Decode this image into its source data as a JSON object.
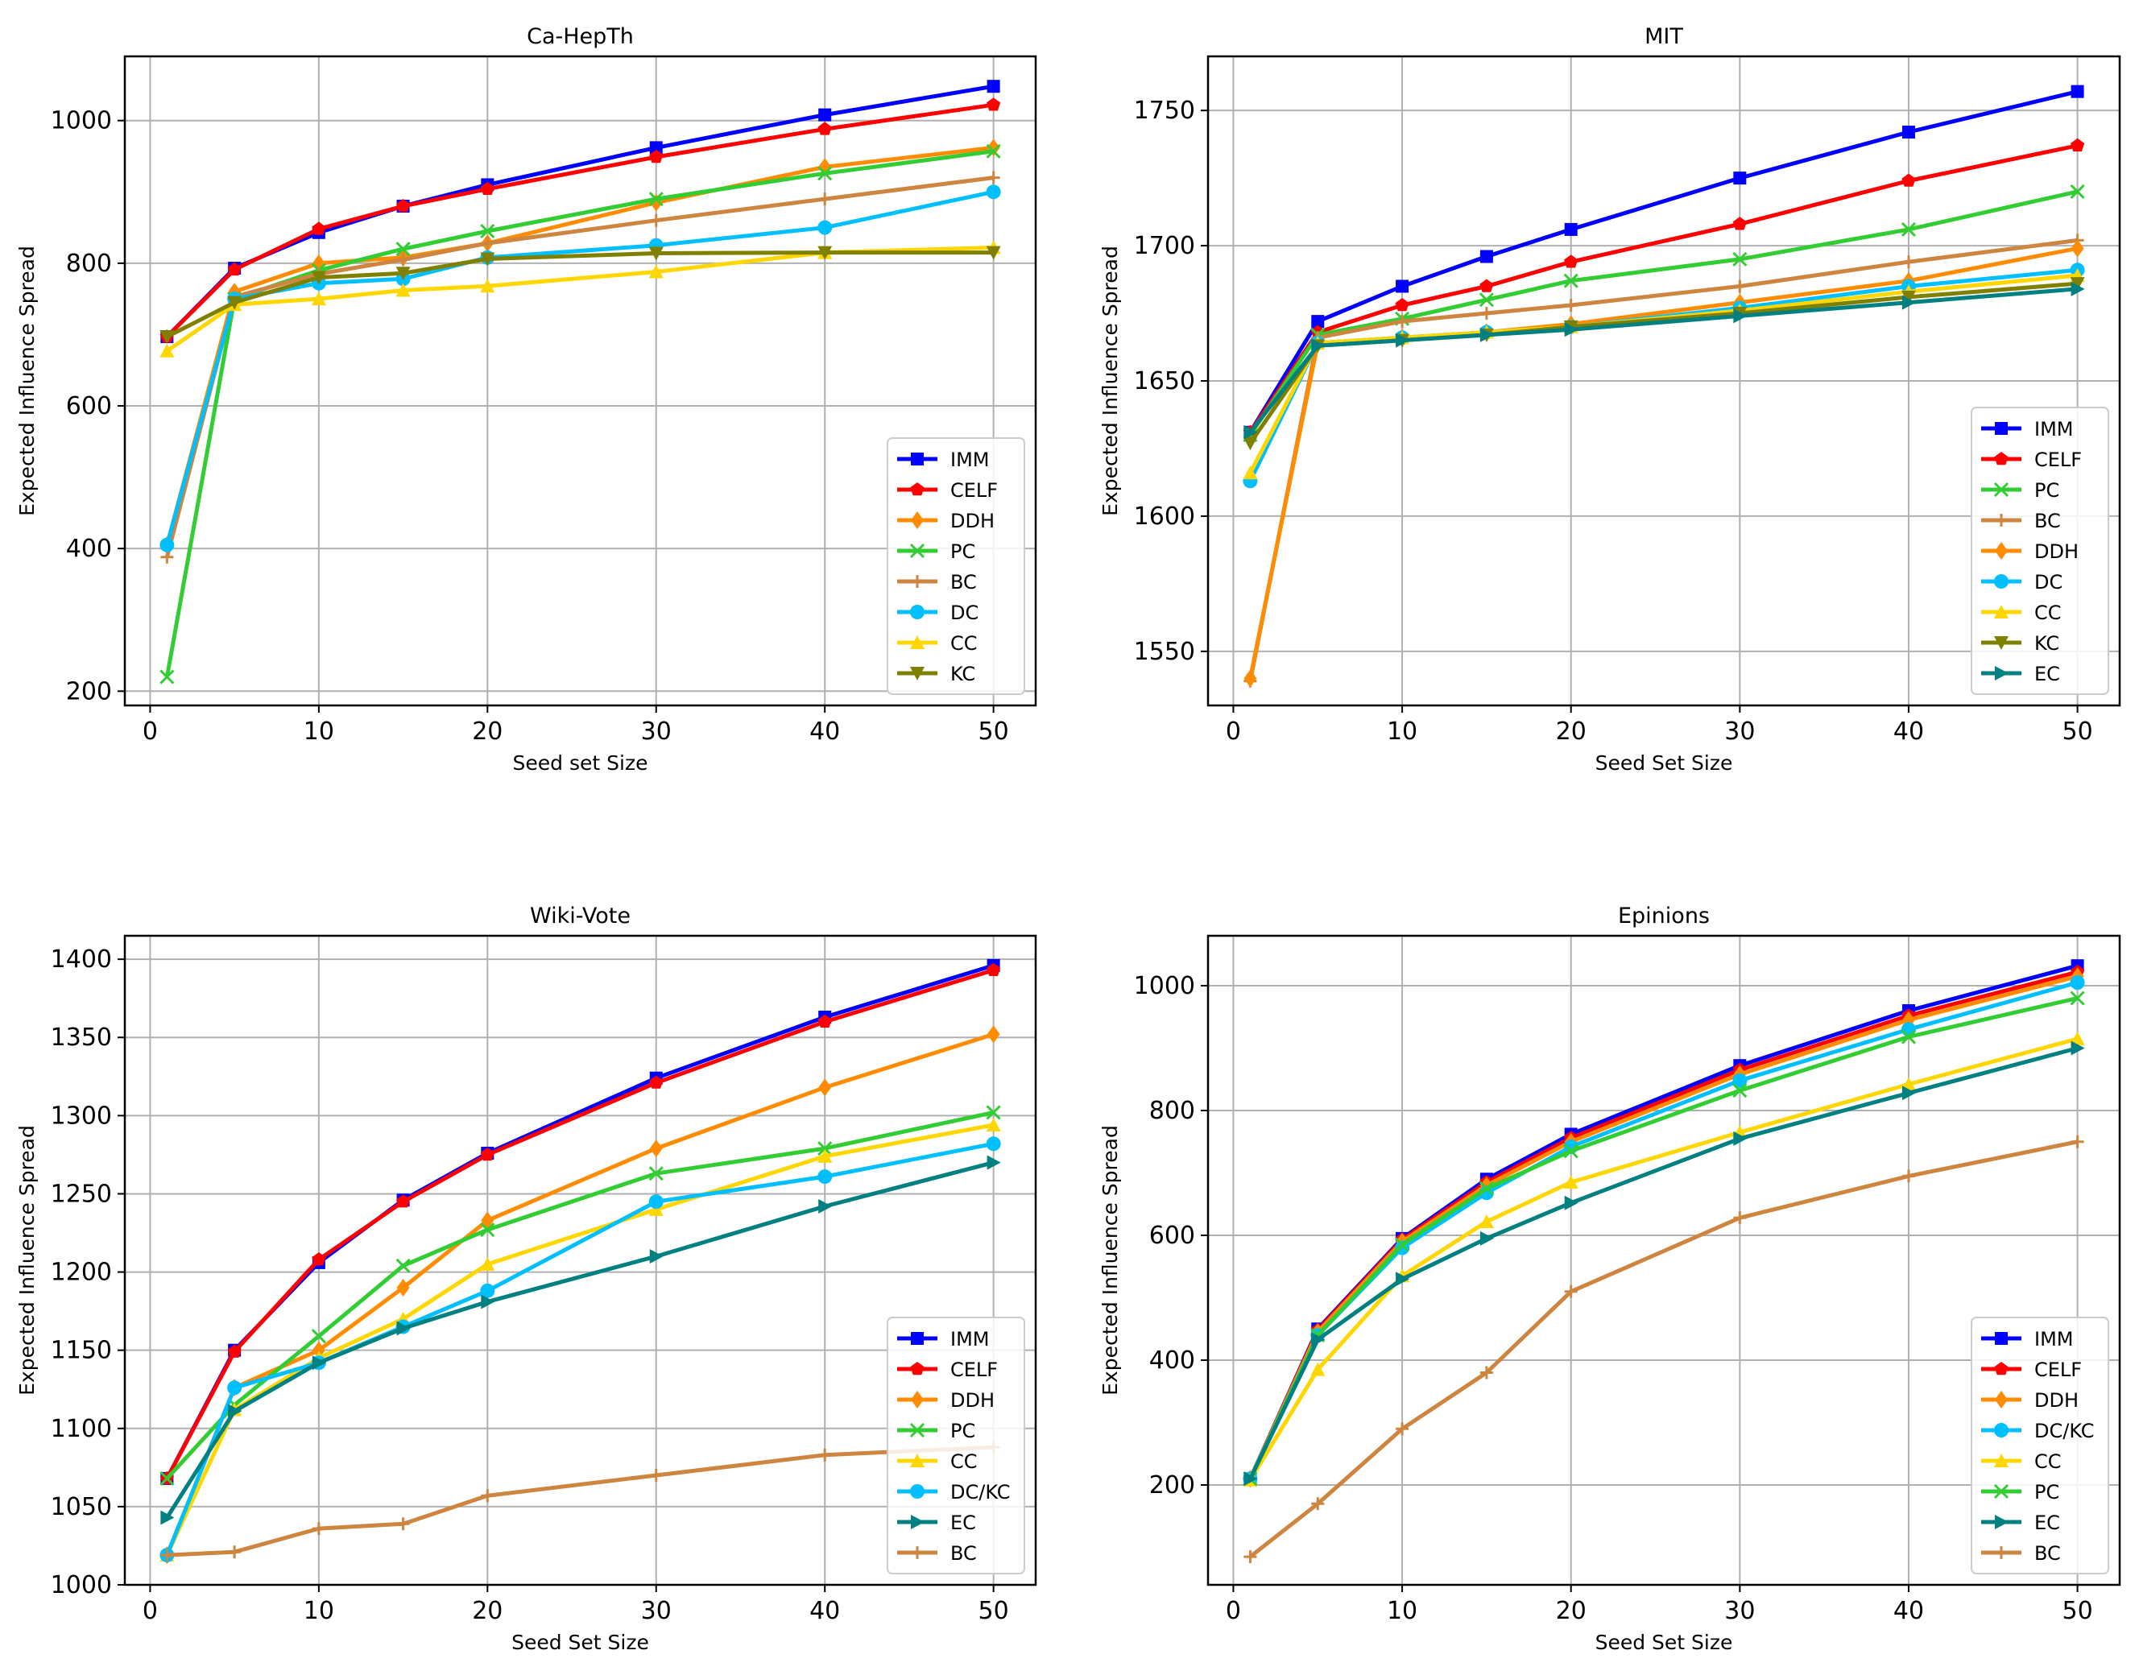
{
  "chart_data": [
    {
      "type": "line",
      "title": "Ca-HepTh",
      "xlabel": "Seed set Size",
      "ylabel": "Expected Influence Spread",
      "xlim": [
        -1.5,
        52.5
      ],
      "ylim": [
        180,
        1090
      ],
      "xticks": [
        0,
        10,
        20,
        30,
        40,
        50
      ],
      "yticks": [
        200,
        400,
        600,
        800,
        1000
      ],
      "x": [
        1,
        5,
        10,
        15,
        20,
        30,
        40,
        50
      ],
      "grid": true,
      "legend": "lower-right",
      "series": [
        {
          "name": "IMM",
          "color": "#0000ff",
          "marker": "square",
          "values": [
            697,
            793,
            843,
            880,
            910,
            962,
            1008,
            1048
          ]
        },
        {
          "name": "CELF",
          "color": "#ff0000",
          "marker": "pentagon",
          "values": [
            697,
            791,
            848,
            880,
            904,
            949,
            988,
            1022
          ]
        },
        {
          "name": "DDH",
          "color": "#ff8c00",
          "marker": "diamond",
          "values": [
            405,
            760,
            800,
            808,
            828,
            885,
            935,
            962
          ]
        },
        {
          "name": "PC",
          "color": "#32cd32",
          "marker": "x",
          "values": [
            220,
            750,
            790,
            820,
            845,
            890,
            926,
            957
          ]
        },
        {
          "name": "BC",
          "color": "#cd853f",
          "marker": "plus",
          "values": [
            388,
            753,
            785,
            805,
            828,
            860,
            890,
            920
          ]
        },
        {
          "name": "DC",
          "color": "#00bfff",
          "marker": "circle",
          "values": [
            405,
            750,
            772,
            778,
            808,
            825,
            850,
            900
          ]
        },
        {
          "name": "CC",
          "color": "#ffd700",
          "marker": "tri-up",
          "values": [
            677,
            742,
            750,
            762,
            768,
            788,
            815,
            822
          ]
        },
        {
          "name": "KC",
          "color": "#808000",
          "marker": "tri-down",
          "values": [
            697,
            745,
            780,
            786,
            806,
            814,
            815,
            815
          ]
        }
      ]
    },
    {
      "type": "line",
      "title": "MIT",
      "xlabel": "Seed Set Size",
      "ylabel": "Expected Influence Spread",
      "xlim": [
        -1.5,
        52.5
      ],
      "ylim": [
        1530,
        1770
      ],
      "xticks": [
        0,
        10,
        20,
        30,
        40,
        50
      ],
      "yticks": [
        1550,
        1600,
        1650,
        1700,
        1750
      ],
      "x": [
        1,
        5,
        10,
        15,
        20,
        30,
        40,
        50
      ],
      "grid": true,
      "legend": "lower-right",
      "series": [
        {
          "name": "IMM",
          "color": "#0000ff",
          "marker": "square",
          "values": [
            1631,
            1672,
            1685,
            1696,
            1706,
            1725,
            1742,
            1757
          ]
        },
        {
          "name": "CELF",
          "color": "#ff0000",
          "marker": "pentagon",
          "values": [
            1631,
            1668,
            1678,
            1685,
            1694,
            1708,
            1724,
            1737
          ]
        },
        {
          "name": "PC",
          "color": "#32cd32",
          "marker": "x",
          "values": [
            1630,
            1667,
            1673,
            1680,
            1687,
            1695,
            1706,
            1720
          ]
        },
        {
          "name": "BC",
          "color": "#cd853f",
          "marker": "plus",
          "values": [
            1539,
            1666,
            1672,
            1675,
            1678,
            1685,
            1694,
            1702
          ]
        },
        {
          "name": "DDH",
          "color": "#ff8c00",
          "marker": "diamond",
          "values": [
            1540,
            1664,
            1666,
            1668,
            1671,
            1679,
            1687,
            1699
          ]
        },
        {
          "name": "DC",
          "color": "#00bfff",
          "marker": "circle",
          "values": [
            1613,
            1664,
            1666,
            1668,
            1670,
            1677,
            1685,
            1691
          ]
        },
        {
          "name": "CC",
          "color": "#ffd700",
          "marker": "tri-up",
          "values": [
            1616,
            1664,
            1666,
            1668,
            1670,
            1676,
            1683,
            1689
          ]
        },
        {
          "name": "KC",
          "color": "#808000",
          "marker": "tri-down",
          "values": [
            1627,
            1663,
            1665,
            1667,
            1670,
            1675,
            1681,
            1686
          ]
        },
        {
          "name": "EC",
          "color": "#008080",
          "marker": "tri-right",
          "values": [
            1631,
            1663,
            1665,
            1667,
            1669,
            1674,
            1679,
            1684
          ]
        }
      ]
    },
    {
      "type": "line",
      "title": "Wiki-Vote",
      "xlabel": "Seed Set Size",
      "ylabel": "Expected Influence Spread",
      "xlim": [
        -1.5,
        52.5
      ],
      "ylim": [
        1000,
        1415
      ],
      "xticks": [
        0,
        10,
        20,
        30,
        40,
        50
      ],
      "yticks": [
        1000,
        1050,
        1100,
        1150,
        1200,
        1250,
        1300,
        1350,
        1400
      ],
      "x": [
        1,
        5,
        10,
        15,
        20,
        30,
        40,
        50
      ],
      "grid": true,
      "legend": "lower-right",
      "series": [
        {
          "name": "IMM",
          "color": "#0000ff",
          "marker": "square",
          "values": [
            1068,
            1150,
            1206,
            1246,
            1276,
            1324,
            1363,
            1396
          ]
        },
        {
          "name": "CELF",
          "color": "#ff0000",
          "marker": "pentagon",
          "values": [
            1068,
            1149,
            1208,
            1245,
            1275,
            1321,
            1360,
            1393
          ]
        },
        {
          "name": "DDH",
          "color": "#ff8c00",
          "marker": "diamond",
          "values": [
            1019,
            1126,
            1150,
            1190,
            1233,
            1279,
            1318,
            1352
          ]
        },
        {
          "name": "PC",
          "color": "#32cd32",
          "marker": "x",
          "values": [
            1068,
            1115,
            1159,
            1204,
            1227,
            1263,
            1279,
            1302
          ]
        },
        {
          "name": "CC",
          "color": "#ffd700",
          "marker": "tri-up",
          "values": [
            1019,
            1112,
            1145,
            1170,
            1205,
            1240,
            1274,
            1294
          ]
        },
        {
          "name": "DC/KC",
          "color": "#00bfff",
          "marker": "circle",
          "values": [
            1019,
            1126,
            1142,
            1165,
            1188,
            1245,
            1261,
            1282
          ]
        },
        {
          "name": "EC",
          "color": "#008080",
          "marker": "tri-right",
          "values": [
            1043,
            1111,
            1142,
            1164,
            1181,
            1210,
            1242,
            1270
          ]
        },
        {
          "name": "BC",
          "color": "#cd853f",
          "marker": "plus",
          "values": [
            1019,
            1021,
            1036,
            1039,
            1057,
            1070,
            1083,
            1088
          ]
        }
      ]
    },
    {
      "type": "line",
      "title": "Epinions",
      "xlabel": "Seed Set Size",
      "ylabel": "Expected Influence Spread",
      "xlim": [
        -1.5,
        52.5
      ],
      "ylim": [
        40,
        1080
      ],
      "xticks": [
        0,
        10,
        20,
        30,
        40,
        50
      ],
      "yticks": [
        200,
        400,
        600,
        800,
        1000
      ],
      "x": [
        1,
        5,
        10,
        15,
        20,
        30,
        40,
        50
      ],
      "grid": true,
      "legend": "lower-right",
      "series": [
        {
          "name": "IMM",
          "color": "#0000ff",
          "marker": "square",
          "values": [
            210,
            450,
            595,
            690,
            762,
            872,
            960,
            1032
          ]
        },
        {
          "name": "CELF",
          "color": "#ff0000",
          "marker": "pentagon",
          "values": [
            210,
            448,
            593,
            685,
            756,
            865,
            952,
            1022
          ]
        },
        {
          "name": "DDH",
          "color": "#ff8c00",
          "marker": "diamond",
          "values": [
            210,
            445,
            590,
            680,
            750,
            858,
            945,
            1015
          ]
        },
        {
          "name": "DC/KC",
          "color": "#00bfff",
          "marker": "circle",
          "values": [
            210,
            440,
            580,
            668,
            742,
            848,
            930,
            1005
          ]
        },
        {
          "name": "CC",
          "color": "#ffd700",
          "marker": "tri-up",
          "values": [
            208,
            385,
            535,
            622,
            685,
            765,
            842,
            915
          ]
        },
        {
          "name": "PC",
          "color": "#32cd32",
          "marker": "x",
          "values": [
            210,
            440,
            585,
            675,
            735,
            832,
            918,
            980
          ]
        },
        {
          "name": "EC",
          "color": "#008080",
          "marker": "tri-right",
          "values": [
            210,
            433,
            530,
            595,
            652,
            755,
            828,
            900
          ]
        },
        {
          "name": "BC",
          "color": "#cd853f",
          "marker": "plus",
          "values": [
            85,
            170,
            290,
            380,
            510,
            628,
            695,
            750
          ]
        }
      ]
    }
  ]
}
